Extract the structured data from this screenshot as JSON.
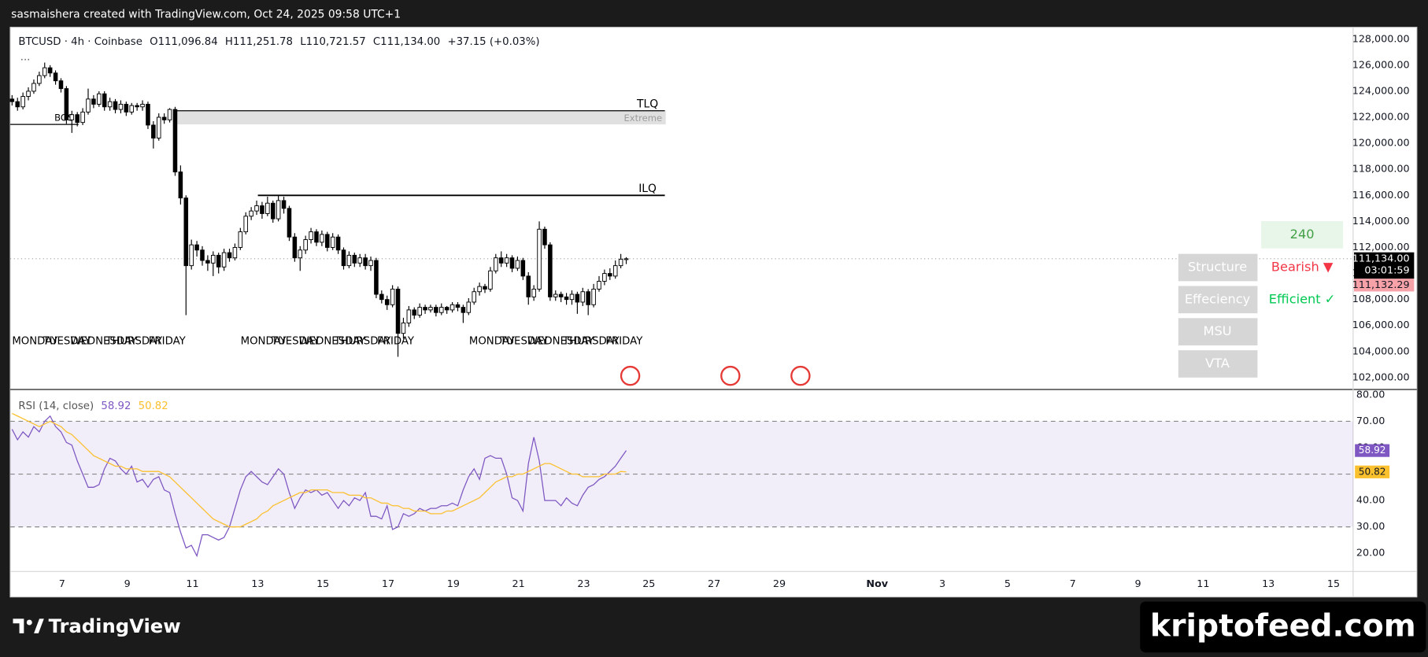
{
  "top_bar": "sasmaishera created with TradingView.com, Oct 24, 2025 09:58 UTC+1",
  "chart_data": [
    {
      "type": "candlestick",
      "symbol": "BTCUSD · 4h · Coinbase",
      "header_fields": [
        {
          "key": "O",
          "value": "111,096.84"
        },
        {
          "key": "H",
          "value": "111,251.78"
        },
        {
          "key": "L",
          "value": "110,721.57"
        },
        {
          "key": "C",
          "value": "111,134.00"
        }
      ],
      "change": "+37.15 (+0.03%)",
      "up_color": "#ffffff",
      "down_color": "#000000",
      "wick_color": "#000000",
      "open": [
        123400,
        123200,
        122800,
        123600,
        124000,
        124600,
        125200,
        125800,
        125400,
        124800,
        124200,
        121800,
        122200,
        121600,
        122400,
        123400,
        123000,
        123800,
        122800,
        123200,
        122600,
        123000,
        122400,
        122900,
        122800,
        123000,
        121400,
        120400,
        122000,
        121800,
        122600,
        117800,
        115800,
        110600,
        112200,
        111800,
        111000,
        110800,
        111400,
        110500,
        111600,
        111200,
        112000,
        113200,
        114400,
        114800,
        115200,
        114600,
        115400,
        114200,
        115600,
        115000,
        112800,
        111200,
        111800,
        112600,
        113200,
        112400,
        113000,
        112000,
        112800,
        111800,
        110600,
        111400,
        110800,
        111200,
        110600,
        111000,
        108400,
        108000,
        107600,
        108800,
        105400,
        106200,
        107200,
        106800,
        107400,
        107200,
        107400,
        107000,
        107400,
        107200,
        107600,
        107400,
        107000,
        107800,
        108600,
        109000,
        108800,
        110200,
        111200,
        110800,
        111200,
        110400,
        111000,
        109800,
        108200,
        108800,
        113400,
        112200,
        108200,
        108400,
        108200,
        108000,
        108400,
        107800,
        108600,
        107600,
        108800,
        109400,
        110000,
        109800,
        110600,
        111096.84
      ],
      "high": [
        123700,
        123500,
        123900,
        124300,
        124900,
        125500,
        126200,
        126000,
        125600,
        125000,
        124400,
        122500,
        122400,
        122700,
        124200,
        123700,
        124000,
        124000,
        123500,
        123400,
        123300,
        123200,
        123100,
        123100,
        123300,
        123200,
        121700,
        122300,
        122300,
        122700,
        122800,
        118300,
        116000,
        112600,
        112500,
        112100,
        111400,
        111700,
        111600,
        111900,
        111900,
        112300,
        113500,
        114700,
        115100,
        115600,
        115500,
        115900,
        115600,
        116000,
        115900,
        115200,
        113100,
        112100,
        112900,
        113500,
        113400,
        113300,
        113200,
        113100,
        113000,
        112000,
        111700,
        111600,
        111500,
        111500,
        111300,
        111200,
        108700,
        108300,
        109100,
        109000,
        106600,
        107500,
        107400,
        107700,
        107600,
        107600,
        107600,
        107700,
        107500,
        107800,
        107800,
        107600,
        108100,
        108900,
        109300,
        109200,
        110500,
        111500,
        111700,
        111500,
        111400,
        111300,
        111200,
        110100,
        109100,
        114000,
        113600,
        112400,
        108700,
        108600,
        108500,
        108700,
        108600,
        108900,
        108800,
        109200,
        109800,
        110300,
        110400,
        111000,
        111500,
        111251.78
      ],
      "low": [
        122900,
        122500,
        122600,
        123300,
        123800,
        124400,
        125000,
        125100,
        124500,
        123900,
        121500,
        120800,
        121300,
        121400,
        122200,
        122700,
        122800,
        122500,
        122500,
        122300,
        122300,
        122100,
        122200,
        122500,
        122500,
        121100,
        119600,
        120200,
        121500,
        121600,
        117500,
        115300,
        106800,
        110300,
        111300,
        110600,
        110200,
        109800,
        110000,
        110200,
        110900,
        111000,
        111800,
        113000,
        114100,
        114500,
        114200,
        114400,
        113900,
        114000,
        114600,
        112500,
        110900,
        110200,
        111500,
        112300,
        112100,
        112100,
        111700,
        111800,
        111500,
        110300,
        110400,
        110500,
        110500,
        110300,
        110200,
        108100,
        107700,
        107200,
        107400,
        103600,
        105000,
        105900,
        106500,
        106600,
        106900,
        107000,
        106700,
        106800,
        106900,
        107000,
        107100,
        106200,
        106800,
        107600,
        108300,
        108500,
        108600,
        110000,
        110500,
        110500,
        110100,
        110200,
        109500,
        107600,
        107900,
        108600,
        111900,
        107900,
        107900,
        107800,
        107600,
        107600,
        106900,
        107500,
        106800,
        107400,
        108600,
        109100,
        109500,
        109600,
        110400,
        110721.57
      ],
      "close": [
        123200,
        122800,
        123600,
        124000,
        124600,
        125200,
        125800,
        125400,
        124800,
        124200,
        121800,
        122200,
        121600,
        122400,
        123400,
        123000,
        123800,
        122800,
        123200,
        122600,
        123000,
        122400,
        122900,
        122800,
        123000,
        121400,
        120400,
        122000,
        121800,
        122600,
        117800,
        115800,
        110600,
        112200,
        111800,
        111000,
        110800,
        111400,
        110500,
        111600,
        111200,
        112000,
        113200,
        114400,
        114800,
        115200,
        114600,
        115400,
        114200,
        115600,
        115000,
        112800,
        111200,
        111800,
        112600,
        113200,
        112400,
        113000,
        112000,
        112800,
        111800,
        110600,
        111400,
        110800,
        111200,
        110600,
        111000,
        108400,
        108000,
        107600,
        108800,
        105400,
        106200,
        107200,
        106800,
        107400,
        107200,
        107400,
        107000,
        107400,
        107200,
        107600,
        107400,
        107000,
        107800,
        108600,
        109000,
        108800,
        110200,
        111200,
        110800,
        111200,
        110400,
        111000,
        109800,
        108200,
        108800,
        113400,
        112200,
        108200,
        108400,
        108200,
        108000,
        108400,
        107800,
        108600,
        107600,
        108800,
        109400,
        110000,
        109800,
        110600,
        111098,
        111134
      ],
      "ylim": [
        101090,
        128910
      ],
      "yticks": [
        {
          "value": 102000,
          "label": "102,000.00"
        },
        {
          "value": 104000,
          "label": "104,000.00"
        },
        {
          "value": 106000,
          "label": "106,000.00"
        },
        {
          "value": 108000,
          "label": "108,000.00"
        },
        {
          "value": 110000,
          "label": "110,000.00"
        },
        {
          "value": 112000,
          "label": "112,000.00"
        },
        {
          "value": 114000,
          "label": "114,000.00"
        },
        {
          "value": 116000,
          "label": "116,000.00"
        },
        {
          "value": 118000,
          "label": "118,000.00"
        },
        {
          "value": 120000,
          "label": "120,000.00"
        },
        {
          "value": 122000,
          "label": "122,000.00"
        },
        {
          "value": 124000,
          "label": "124,000.00"
        },
        {
          "value": 126000,
          "label": "126,000.00"
        },
        {
          "value": 128000,
          "label": "128,000.00"
        }
      ],
      "xlim": [
        5.41,
        46.6
      ],
      "xticks": [
        7,
        9,
        11,
        13,
        15,
        17,
        19,
        21,
        23,
        25,
        27,
        29,
        {
          "value": 32,
          "label": "Nov"
        },
        {
          "value": 34,
          "label": "3"
        },
        {
          "value": 36,
          "label": "5"
        },
        {
          "value": 38,
          "label": "7"
        },
        {
          "value": 40,
          "label": "9"
        },
        {
          "value": 42,
          "label": "11"
        },
        {
          "value": 44,
          "label": "13"
        },
        {
          "value": 46,
          "label": "15"
        }
      ],
      "weekday_labels": [
        "MONDAY",
        "TUESDAY",
        "WEDNESDAY",
        "THURSDAY",
        "FRIDAY"
      ],
      "levels": [
        {
          "label": "TLQ",
          "value": 122500
        },
        {
          "label": "ILQ",
          "value": 116000
        },
        {
          "label": "BOS",
          "value": 121450
        }
      ],
      "zone": {
        "label": "Extreme",
        "from": 121450,
        "to": 122500
      },
      "last_price": {
        "label": "111,134.00",
        "countdown": "03:01:59"
      },
      "other_price": {
        "value": 111132.29,
        "label": "111,132.29"
      }
    },
    {
      "type": "line",
      "title": "RSI (14, close)",
      "series": [
        {
          "color": "#7e57c2",
          "values": [
            67,
            63,
            66,
            64,
            68,
            66,
            70,
            72,
            68,
            66,
            62,
            61,
            55,
            50,
            45,
            45,
            46,
            52,
            56,
            55,
            52,
            50,
            53,
            47,
            48,
            45,
            48,
            49,
            44,
            43,
            35,
            28,
            22,
            23,
            19,
            27,
            27,
            26,
            25,
            26,
            30,
            37,
            44,
            49,
            51,
            49,
            47,
            46,
            49,
            52,
            50,
            43,
            37,
            41,
            44,
            43,
            44,
            42,
            43,
            40,
            37,
            40,
            38,
            41,
            40,
            43,
            34,
            34,
            33,
            38,
            29,
            30,
            35,
            34,
            35,
            37,
            36,
            37,
            37,
            38,
            38,
            39,
            38,
            44,
            49,
            52,
            48,
            56,
            57,
            56,
            56,
            50,
            41,
            40,
            36,
            54,
            64,
            55,
            40,
            40,
            40,
            38,
            41,
            39,
            38,
            42,
            45,
            46,
            48,
            49,
            51,
            53,
            56,
            58.92
          ]
        },
        {
          "color": "#fbc02d",
          "values": [
            73,
            72,
            71,
            70,
            69,
            68,
            69,
            70,
            69,
            68,
            66,
            65,
            63,
            61,
            59,
            57,
            56,
            55,
            54,
            53,
            53,
            52,
            52,
            52,
            51,
            51,
            51,
            51,
            50,
            49,
            47,
            45,
            43,
            41,
            39,
            37,
            35,
            33,
            32,
            31,
            30,
            30,
            30,
            31,
            32,
            33,
            35,
            36,
            38,
            39,
            40,
            41,
            42,
            43,
            43,
            44,
            44,
            44,
            44,
            43,
            43,
            43,
            42,
            42,
            42,
            41,
            41,
            40,
            39,
            39,
            38,
            38,
            37,
            37,
            36,
            36,
            36,
            35,
            35,
            35,
            36,
            36,
            37,
            38,
            39,
            40,
            41,
            43,
            45,
            47,
            48,
            49,
            49,
            50,
            50,
            51,
            52,
            53,
            54,
            54,
            53,
            52,
            51,
            50,
            50,
            49,
            49,
            49,
            49,
            50,
            50,
            50,
            51,
            50.82
          ]
        }
      ],
      "ylim": [
        13.1,
        82.07
      ],
      "yticks": [
        {
          "value": 20,
          "label": "20.00"
        },
        {
          "value": 30,
          "label": "30.00"
        },
        {
          "value": 40,
          "label": "40.00"
        },
        {
          "value": 50,
          "label": "50.00"
        },
        {
          "value": 60,
          "label": "60.00"
        },
        {
          "value": 70,
          "label": "70.00"
        },
        {
          "value": 80,
          "label": "80.00"
        }
      ],
      "bands": [
        70,
        50,
        30
      ],
      "band_color": "#7e57c2"
    }
  ],
  "panel": {
    "timeframe": "240",
    "rows": [
      {
        "name": "Structure",
        "status": "Bearish ▼",
        "color": "#f23645"
      },
      {
        "name": "Effeciency",
        "status": "Efficient ✓",
        "color": "#00c853"
      },
      {
        "name": "MSU"
      },
      {
        "name": "VTA"
      }
    ]
  },
  "footer": {
    "brand": "TradingView",
    "watermark": "kriptofeed.com"
  }
}
